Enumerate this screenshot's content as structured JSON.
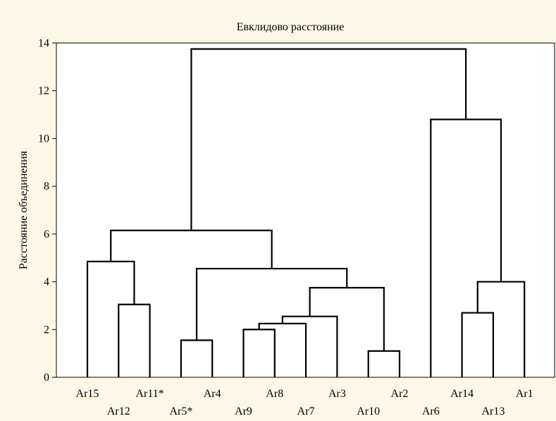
{
  "chart_data": {
    "type": "dendrogram",
    "title": "Евклидово расстояние",
    "ylabel": "Расстояние объединения",
    "xlabel": "",
    "ylim": [
      0,
      14
    ],
    "yticks": [
      0,
      2,
      4,
      6,
      8,
      10,
      12,
      14
    ],
    "grid": false,
    "leaves": [
      "Ar15",
      "Ar12",
      "Ar11*",
      "Ar5*",
      "Ar4",
      "Ar9",
      "Ar8",
      "Ar7",
      "Ar3",
      "Ar10",
      "Ar2",
      "Ar6",
      "Ar14",
      "Ar13",
      "Ar1"
    ],
    "merges": [
      {
        "left": "Ar10",
        "right": "Ar2",
        "height": 1.1
      },
      {
        "left": "Ar5*",
        "right": "Ar4",
        "height": 1.55
      },
      {
        "left": "Ar9",
        "right": "Ar8",
        "height": 2.0
      },
      {
        "left": "Ar14",
        "right": "Ar13",
        "height": 2.7
      },
      {
        "left": "Ar12",
        "right": "Ar11*",
        "height": 3.05
      },
      {
        "left": "cluster(Ar9,Ar8)",
        "right": "Ar7",
        "height": 2.25
      },
      {
        "left": "cluster(Ar9,Ar8,Ar7)",
        "right": "Ar3",
        "height": 2.55
      },
      {
        "left": "cluster(Ar9,Ar8,Ar7,Ar3)",
        "right": "cluster(Ar10,Ar2)",
        "height": 3.75
      },
      {
        "left": "cluster(Ar14,Ar13)",
        "right": "Ar1",
        "height": 4.0
      },
      {
        "left": "cluster(Ar5*,Ar4)",
        "right": "cluster(Ar9,Ar8,Ar7,Ar3,Ar10,Ar2)",
        "height": 4.55
      },
      {
        "left": "Ar15",
        "right": "cluster(Ar12,Ar11*)",
        "height": 4.85
      },
      {
        "left": "cluster(Ar15,Ar12,Ar11*)",
        "right": "cluster(Ar5*,Ar4,Ar9,Ar8,Ar7,Ar3,Ar10,Ar2)",
        "height": 6.15
      },
      {
        "left": "Ar6",
        "right": "cluster(Ar14,Ar13,Ar1)",
        "height": 10.8
      },
      {
        "left": "cluster(Ar15..Ar2)",
        "right": "cluster(Ar6,Ar14,Ar13,Ar1)",
        "height": 13.75
      }
    ]
  }
}
